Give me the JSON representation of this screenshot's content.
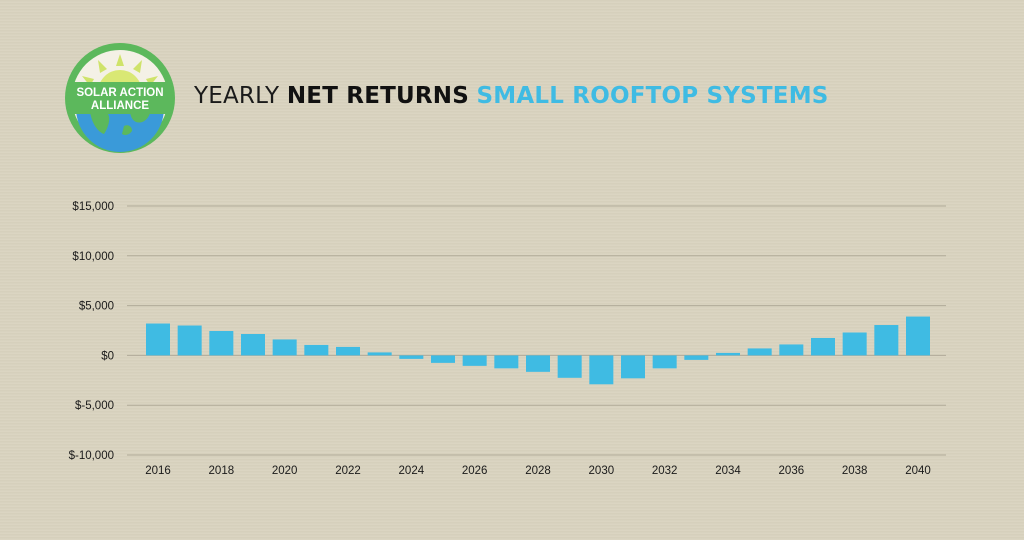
{
  "logo": {
    "line1": "SOLAR ACTION",
    "line2": "ALLIANCE"
  },
  "header": {
    "title_part1": "YEARLY",
    "title_part2": "NET RETURNS",
    "title_part3": "SMALL ROOFTOP SYSTEMS"
  },
  "colors": {
    "background": "#d9d3bf",
    "bar": "#3fbbe3",
    "grid": "#b0aa98",
    "logo_ring": "#5cb85c",
    "logo_sun": "#cfe36a",
    "logo_ocean": "#3a9ad9"
  },
  "chart_data": {
    "type": "bar",
    "title": "YEARLY NET RETURNS SMALL ROOFTOP SYSTEMS",
    "xlabel": "",
    "ylabel": "",
    "ylim": [
      -10000,
      15000
    ],
    "yticks": [
      15000,
      10000,
      5000,
      0,
      -5000,
      -10000
    ],
    "ytick_labels": [
      "$15,000",
      "$10,000",
      "$5,000",
      "$0",
      "$-5,000",
      "$-10,000"
    ],
    "xtick_labels": [
      "2016",
      "2018",
      "2020",
      "2022",
      "2024",
      "2026",
      "2028",
      "2030",
      "2032",
      "2034",
      "2036",
      "2038",
      "2040"
    ],
    "grid": true,
    "categories": [
      "2016",
      "2017",
      "2018",
      "2019",
      "2020",
      "2021",
      "2022",
      "2023",
      "2024",
      "2025",
      "2026",
      "2027",
      "2028",
      "2029",
      "2030",
      "2031",
      "2032",
      "2033",
      "2034",
      "2035",
      "2036",
      "2037",
      "2038",
      "2039",
      "2040"
    ],
    "values": [
      3200,
      3000,
      2450,
      2150,
      1600,
      1050,
      850,
      300,
      -350,
      -750,
      -1050,
      -1300,
      -1650,
      -2250,
      -2900,
      -2300,
      -1300,
      -450,
      250,
      700,
      1100,
      1750,
      2300,
      3050,
      3900
    ]
  }
}
